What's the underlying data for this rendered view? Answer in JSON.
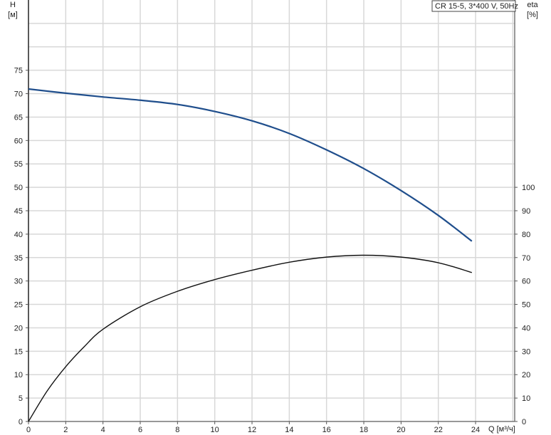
{
  "chart_data": {
    "type": "line",
    "title": "CR 15-5, 3*400 V, 50Hz",
    "xlabel": "Q [м³/ч]",
    "ylabel_left": "H",
    "ylabel_left_unit": "[м]",
    "ylabel_right": "eta",
    "ylabel_right_unit": "[%]",
    "xlim": [
      0,
      26.1
    ],
    "ylim_left": [
      0,
      90
    ],
    "ylim_right": [
      0,
      180
    ],
    "x_ticks": [
      0,
      2,
      4,
      6,
      8,
      10,
      12,
      14,
      16,
      18,
      20,
      22,
      24
    ],
    "y_left_ticks": [
      0,
      5,
      10,
      15,
      20,
      25,
      30,
      35,
      40,
      45,
      50,
      55,
      60,
      65,
      70,
      75
    ],
    "y_right_ticks": [
      0,
      10,
      20,
      30,
      40,
      50,
      60,
      70,
      80,
      90,
      100
    ],
    "grid": true,
    "series": [
      {
        "axis": "left",
        "color": "#1f4e8c",
        "x": [
          0,
          2,
          4,
          6,
          8,
          10,
          12,
          14,
          16,
          18,
          20,
          22,
          23.8
        ],
        "y": [
          71,
          70.1,
          69.3,
          68.6,
          67.7,
          66.2,
          64.2,
          61.5,
          58,
          54,
          49.3,
          44,
          38.5
        ]
      },
      {
        "axis": "right",
        "color": "#111111",
        "x": [
          0,
          1,
          2,
          3,
          4,
          6,
          8,
          10,
          12,
          14,
          16,
          18,
          20,
          22,
          23.8
        ],
        "y": [
          0,
          13,
          23.4,
          32,
          39.4,
          49,
          55.6,
          60.6,
          64.6,
          68,
          70.2,
          71,
          70.2,
          67.8,
          63.6
        ]
      }
    ]
  }
}
